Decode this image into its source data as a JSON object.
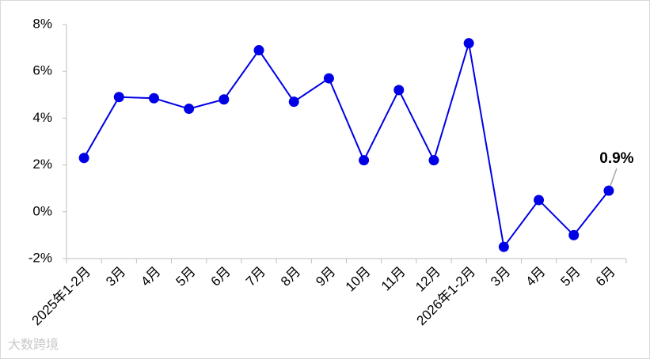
{
  "chart_data": {
    "type": "line",
    "categories": [
      "2025年1-2月",
      "3月",
      "4月",
      "5月",
      "6月",
      "7月",
      "8月",
      "9月",
      "10月",
      "11月",
      "12月",
      "2026年1-2月",
      "3月",
      "4月",
      "5月",
      "6月"
    ],
    "series": [
      {
        "color": "#0000e6",
        "values": [
          2.3,
          4.9,
          4.85,
          4.4,
          4.8,
          6.9,
          4.7,
          5.7,
          2.2,
          5.2,
          2.2,
          7.2,
          -1.5,
          0.5,
          -1.0,
          0.9
        ],
        "value_labels": [
          null,
          null,
          null,
          null,
          null,
          null,
          null,
          null,
          null,
          null,
          null,
          null,
          null,
          null,
          null,
          "0.9%"
        ]
      }
    ],
    "ylim": [
      -2,
      8
    ],
    "yticks": [
      {
        "value": -2,
        "label": "-2%"
      },
      {
        "value": 0,
        "label": "0%"
      },
      {
        "value": 2,
        "label": "2%"
      },
      {
        "value": 4,
        "label": "4%"
      },
      {
        "value": 6,
        "label": "6%"
      },
      {
        "value": 8,
        "label": "8%"
      }
    ],
    "grid": false,
    "watermark": "大数跨境"
  }
}
